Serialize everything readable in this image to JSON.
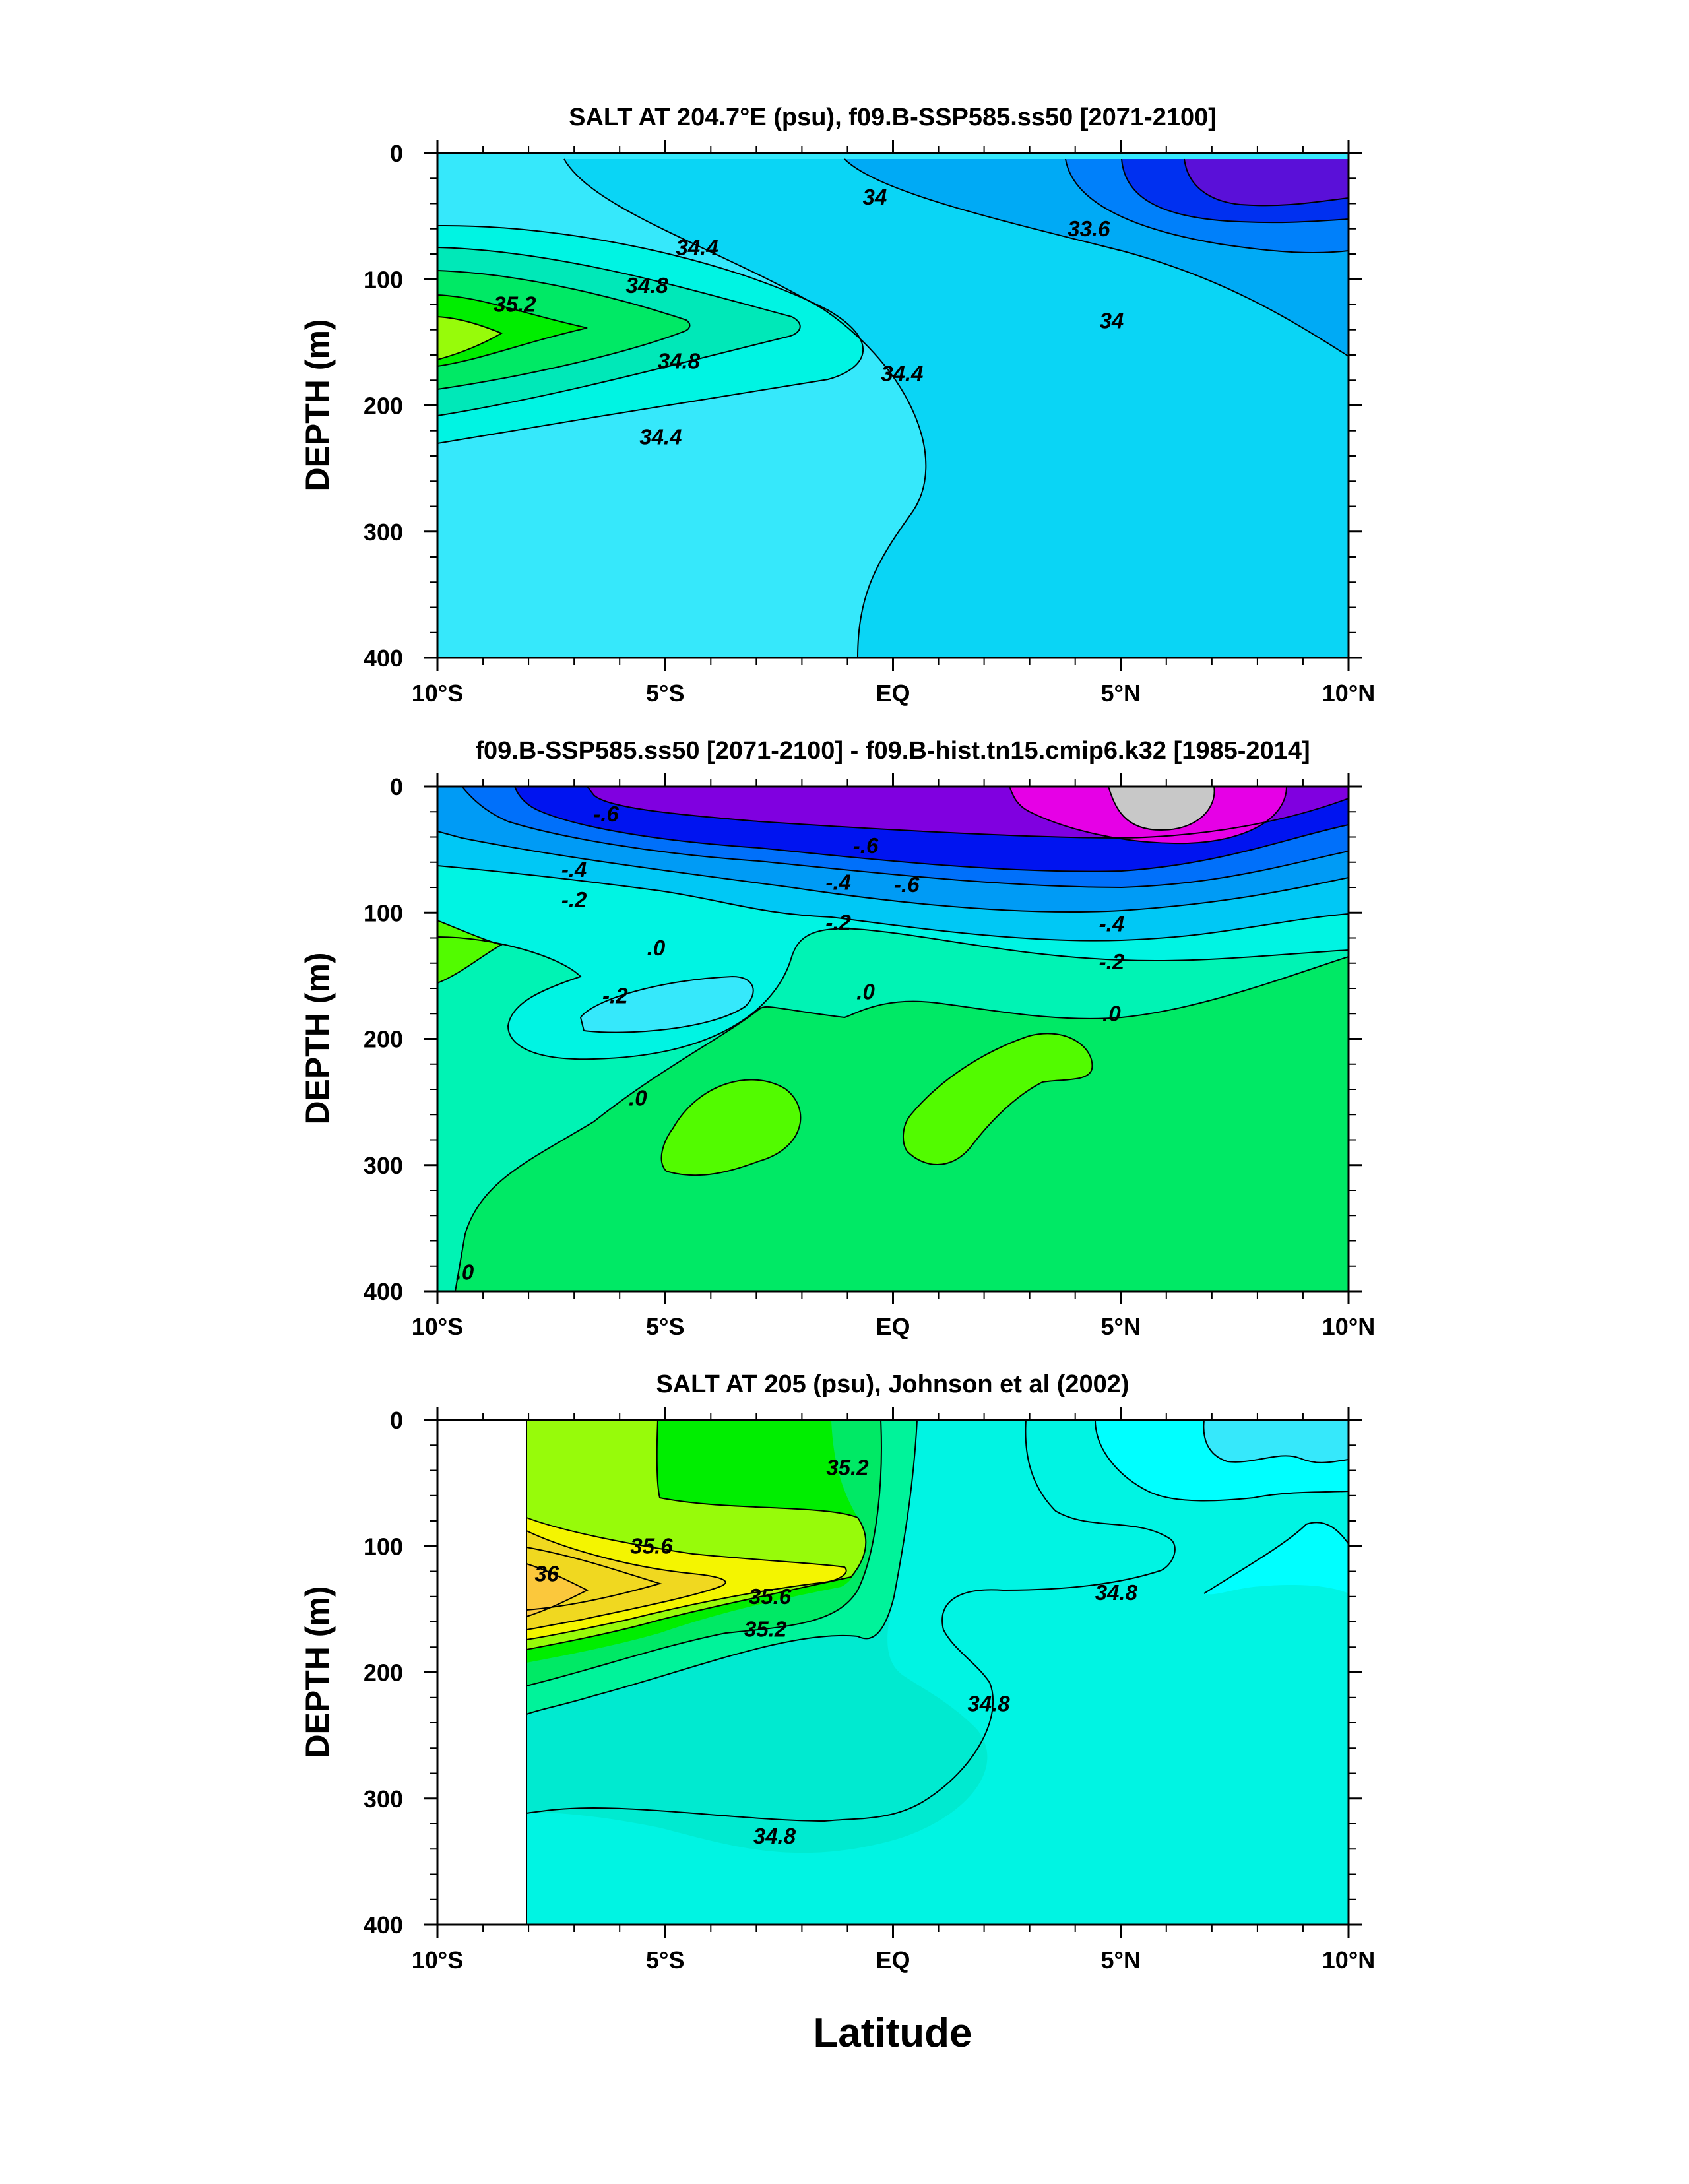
{
  "figure": {
    "xlabel": "Latitude"
  },
  "chart_data": [
    {
      "type": "heatmap",
      "title": "SALT AT 204.7°E (psu), f09.B-SSP585.ss50 [2071-2100]",
      "xlabel": "",
      "ylabel": "DEPTH (m)",
      "xlim": [
        -10,
        10
      ],
      "ylim": [
        400,
        0
      ],
      "xticks": [
        -10,
        -5,
        0,
        5,
        10
      ],
      "xticklabels": [
        "10°S",
        "5°S",
        "EQ",
        "5°N",
        "10°N"
      ],
      "yticks": [
        0,
        100,
        200,
        300,
        400
      ],
      "yticklabels": [
        "0",
        "100",
        "200",
        "300",
        "400"
      ],
      "contour_labels": [
        {
          "text": "35.2",
          "lat": -8.3,
          "depth": 120
        },
        {
          "text": "34.8",
          "lat": -5.4,
          "depth": 105
        },
        {
          "text": "34.4",
          "lat": -4.3,
          "depth": 75
        },
        {
          "text": "34.8",
          "lat": -4.7,
          "depth": 165
        },
        {
          "text": "34.4",
          "lat": -5.1,
          "depth": 225
        },
        {
          "text": "34",
          "lat": -0.4,
          "depth": 35
        },
        {
          "text": "34.4",
          "lat": 0.2,
          "depth": 175
        },
        {
          "text": "33.6",
          "lat": 4.3,
          "depth": 60
        },
        {
          "text": "34",
          "lat": 4.8,
          "depth": 133
        }
      ],
      "colors": [
        "#36e8fb",
        "#0ad5f5",
        "#00aaf5",
        "#0080fa",
        "#0030f0",
        "#5a10d8"
      ]
    },
    {
      "type": "heatmap",
      "title": "f09.B-SSP585.ss50 [2071-2100] - f09.B-hist.tn15.cmip6.k32 [1985-2014]",
      "xlabel": "",
      "ylabel": "DEPTH (m)",
      "xlim": [
        -10,
        10
      ],
      "ylim": [
        400,
        0
      ],
      "xticks": [
        -10,
        -5,
        0,
        5,
        10
      ],
      "xticklabels": [
        "10°S",
        "5°S",
        "EQ",
        "5°N",
        "10°N"
      ],
      "yticks": [
        0,
        100,
        200,
        300,
        400
      ],
      "yticklabels": [
        "0",
        "100",
        "200",
        "300",
        "400"
      ],
      "contour_labels": [
        {
          "text": "-.6",
          "lat": -6.3,
          "depth": 22
        },
        {
          "text": "-.6",
          "lat": -0.6,
          "depth": 47
        },
        {
          "text": "-.6",
          "lat": 0.3,
          "depth": 78
        },
        {
          "text": "-.4",
          "lat": -7.0,
          "depth": 66
        },
        {
          "text": "-.4",
          "lat": -1.2,
          "depth": 76
        },
        {
          "text": "-.4",
          "lat": 4.8,
          "depth": 109
        },
        {
          "text": "-.2",
          "lat": -7.0,
          "depth": 90
        },
        {
          "text": "-.2",
          "lat": -1.2,
          "depth": 108
        },
        {
          "text": "-.2",
          "lat": 4.8,
          "depth": 139
        },
        {
          "text": ".0",
          "lat": -5.2,
          "depth": 128
        },
        {
          "text": "-.2",
          "lat": -6.1,
          "depth": 166
        },
        {
          "text": ".0",
          "lat": -0.6,
          "depth": 163
        },
        {
          "text": ".0",
          "lat": 4.8,
          "depth": 180
        },
        {
          "text": ".0",
          "lat": -5.6,
          "depth": 247
        },
        {
          "text": ".0",
          "lat": -9.4,
          "depth": 385
        }
      ],
      "colors": [
        "#00e965",
        "#52fb00",
        "#00f3b4",
        "#00f4e3",
        "#36e8fb",
        "#00c8f5",
        "#009bf5",
        "#0070fa",
        "#0014f0",
        "#8000e0",
        "#e600e6",
        "#c8c8c8"
      ]
    },
    {
      "type": "heatmap",
      "title": "SALT AT 205 (psu), Johnson et al (2002)",
      "xlabel": "",
      "ylabel": "DEPTH (m)",
      "xlim": [
        -10,
        10
      ],
      "ylim": [
        400,
        0
      ],
      "xticks": [
        -10,
        -5,
        0,
        5,
        10
      ],
      "xticklabels": [
        "10°S",
        "5°S",
        "EQ",
        "5°N",
        "10°N"
      ],
      "yticks": [
        0,
        100,
        200,
        300,
        400
      ],
      "yticklabels": [
        "0",
        "100",
        "200",
        "300",
        "400"
      ],
      "contour_labels": [
        {
          "text": "36",
          "lat": -7.6,
          "depth": 122
        },
        {
          "text": "35.6",
          "lat": -5.3,
          "depth": 100
        },
        {
          "text": "35.6",
          "lat": -2.7,
          "depth": 140
        },
        {
          "text": "35.2",
          "lat": -2.8,
          "depth": 166
        },
        {
          "text": "35.2",
          "lat": -1.0,
          "depth": 38
        },
        {
          "text": "34.8",
          "lat": 4.9,
          "depth": 137
        },
        {
          "text": "34.8",
          "lat": 2.1,
          "depth": 225
        },
        {
          "text": "34.8",
          "lat": -2.6,
          "depth": 330
        }
      ],
      "colors": [
        "#00f4e3",
        "#00ead0",
        "#00f39a",
        "#00e965",
        "#00ee00",
        "#97fb0a",
        "#f4f500",
        "#fbc83c",
        "#00ffff",
        "#36e8fb"
      ]
    }
  ]
}
